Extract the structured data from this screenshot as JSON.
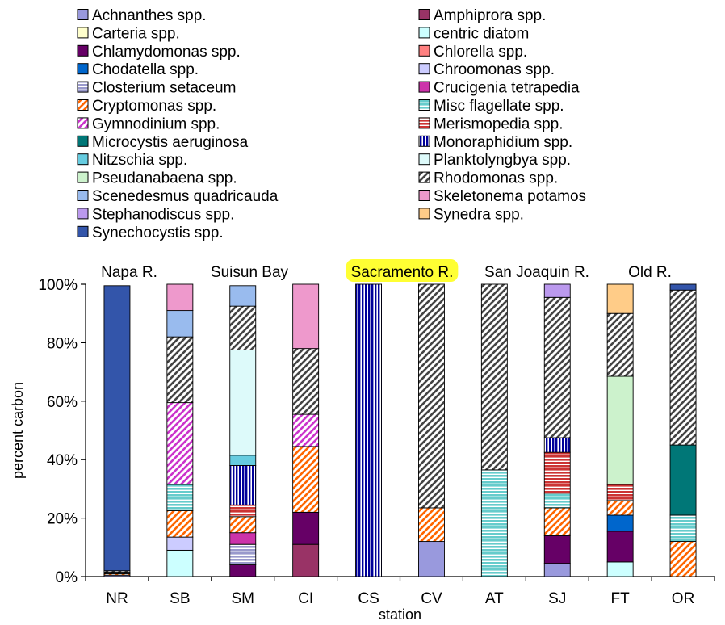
{
  "chart_data": {
    "type": "bar",
    "stacked": true,
    "percent": true,
    "xlabel": "station",
    "ylabel": "percent carbon",
    "ylim": [
      0,
      100
    ],
    "yticks": [
      "0%",
      "20%",
      "40%",
      "60%",
      "80%",
      "100%"
    ],
    "legend_placement": "top",
    "categories": [
      "NR",
      "SB",
      "SM",
      "CI",
      "CS",
      "CV",
      "AT",
      "SJ",
      "FT",
      "OR"
    ],
    "regions": [
      {
        "label": "Napa R.",
        "highlight": false
      },
      {
        "label": "Suisun Bay",
        "highlight": false
      },
      {
        "label": "Sacramento R.",
        "highlight": true
      },
      {
        "label": "San Joaquin R.",
        "highlight": false
      },
      {
        "label": "Old R.",
        "highlight": false
      }
    ],
    "highlight_color": "#ffff33",
    "series": [
      {
        "name": "Achnanthes spp.",
        "color": "#9999dd",
        "pattern": "solid",
        "values": [
          0,
          0,
          0,
          0,
          0,
          12,
          0,
          4.5,
          0,
          0
        ]
      },
      {
        "name": "Amphiprora spp.",
        "color": "#993366",
        "pattern": "solid",
        "values": [
          0,
          0,
          0,
          11,
          0,
          0,
          0,
          0,
          0,
          0
        ]
      },
      {
        "name": "Carteria spp.",
        "color": "#ffffcc",
        "pattern": "solid",
        "values": [
          0,
          0,
          0,
          0,
          0,
          0,
          0,
          0,
          0,
          0
        ]
      },
      {
        "name": "centric diatom",
        "color": "#ccffff",
        "pattern": "solid",
        "values": [
          0,
          9,
          0,
          0,
          0,
          0,
          0,
          0,
          5,
          0
        ]
      },
      {
        "name": "Chlamydomonas spp.",
        "color": "#660066",
        "pattern": "solid",
        "values": [
          0,
          0,
          4,
          11,
          0,
          0,
          0,
          9.5,
          10.5,
          0
        ]
      },
      {
        "name": "Chlorella spp.",
        "color": "#ff8080",
        "pattern": "solid",
        "values": [
          0,
          0,
          0,
          0,
          0,
          0,
          0,
          0,
          0,
          0
        ]
      },
      {
        "name": "Chodatella spp.",
        "color": "#0066cc",
        "pattern": "solid",
        "values": [
          0,
          0,
          0,
          0,
          0,
          0,
          0,
          0,
          5.5,
          0
        ]
      },
      {
        "name": "Chroomonas spp.",
        "color": "#ccccff",
        "pattern": "solid",
        "values": [
          0,
          4.5,
          0,
          0,
          0,
          0,
          0,
          0,
          0,
          0
        ]
      },
      {
        "name": "Closterium setaceum",
        "color": "#9999cc",
        "pattern": "hlines",
        "values": [
          0.5,
          0,
          7,
          0,
          0,
          0,
          0,
          0,
          0,
          0
        ]
      },
      {
        "name": "Crucigenia tetrapedia",
        "color": "#cc33aa",
        "pattern": "solid",
        "values": [
          0,
          0,
          4,
          0,
          0,
          0,
          0,
          0,
          0,
          0
        ]
      },
      {
        "name": "Cryptomonas spp.",
        "color": "#ff6600",
        "pattern": "diag",
        "values": [
          0.5,
          9,
          5.5,
          22.5,
          0,
          11.5,
          0,
          9.5,
          5,
          12
        ]
      },
      {
        "name": "Misc flagellate spp.",
        "color": "#66cccc",
        "pattern": "hlines",
        "values": [
          0,
          9,
          0,
          0,
          0,
          0,
          36.5,
          5,
          0,
          9
        ]
      },
      {
        "name": "Gymnodinium spp.",
        "color": "#cc33cc",
        "pattern": "diag",
        "values": [
          0,
          28,
          0,
          11,
          0,
          0,
          0,
          0,
          0,
          0
        ]
      },
      {
        "name": "Merismopedia spp.",
        "color": "#cc3333",
        "pattern": "hlines",
        "values": [
          0.5,
          0,
          4,
          0,
          0,
          0,
          0,
          14,
          5.5,
          0
        ]
      },
      {
        "name": "Microcystis aeruginosa",
        "color": "#007777",
        "pattern": "solid",
        "values": [
          0,
          0,
          0,
          0,
          0,
          0,
          0,
          0,
          0,
          24
        ]
      },
      {
        "name": "Monoraphidium spp.",
        "color": "#000099",
        "pattern": "vlines",
        "values": [
          0,
          0,
          13.5,
          0,
          100,
          0,
          0,
          5,
          0,
          0
        ]
      },
      {
        "name": "Nitzschia spp.",
        "color": "#66cce0",
        "pattern": "solid",
        "values": [
          0,
          0,
          3.5,
          0,
          0,
          0,
          0,
          0,
          0,
          0
        ]
      },
      {
        "name": "Planktolyngbya spp.",
        "color": "#ddfafa",
        "pattern": "solid",
        "values": [
          0,
          0,
          36,
          0,
          0,
          0,
          0,
          0,
          0,
          0
        ]
      },
      {
        "name": "Pseudanabaena spp.",
        "color": "#ccf2cc",
        "pattern": "solid",
        "values": [
          0,
          0,
          0,
          0,
          0,
          0,
          0,
          0,
          37,
          0
        ]
      },
      {
        "name": "Rhodomonas spp.",
        "color": "#444444",
        "pattern": "diag",
        "values": [
          0.5,
          22.5,
          15,
          22.5,
          0,
          76.5,
          63.5,
          48,
          21.5,
          53
        ]
      },
      {
        "name": "Scenedesmus quadricauda",
        "color": "#99bbee",
        "pattern": "solid",
        "values": [
          0,
          9,
          7,
          0,
          0,
          0,
          0,
          0,
          0,
          0
        ]
      },
      {
        "name": "Skeletonema potamos",
        "color": "#ee99cc",
        "pattern": "solid",
        "values": [
          0,
          9,
          0,
          22,
          0,
          0,
          0,
          0,
          0,
          0
        ]
      },
      {
        "name": "Stephanodiscus spp.",
        "color": "#bb99ee",
        "pattern": "solid",
        "values": [
          0,
          0,
          0,
          0,
          0,
          0,
          0,
          4.5,
          0,
          0
        ]
      },
      {
        "name": "Synedra spp.",
        "color": "#ffcc88",
        "pattern": "solid",
        "values": [
          0,
          0,
          0,
          0,
          0,
          0,
          0,
          0,
          10,
          0
        ]
      },
      {
        "name": "Synechocystis spp.",
        "color": "#3355aa",
        "pattern": "solid",
        "values": [
          97.5,
          0,
          0,
          0,
          0,
          0,
          0,
          0,
          0,
          2
        ]
      }
    ]
  }
}
